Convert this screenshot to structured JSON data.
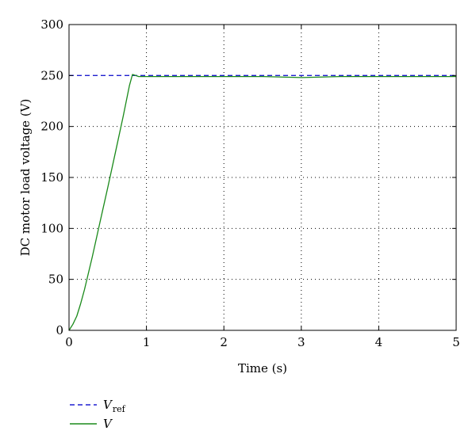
{
  "chart_data": {
    "type": "line",
    "title": "",
    "xlabel": "Time (s)",
    "ylabel": "DC motor load voltage (V)",
    "xlim": [
      0,
      5
    ],
    "ylim": [
      0,
      300
    ],
    "xticks": [
      0,
      1,
      2,
      3,
      4,
      5
    ],
    "yticks": [
      0,
      50,
      100,
      150,
      200,
      250,
      300
    ],
    "xtick_labels": [
      "0",
      "1",
      "2",
      "3",
      "4",
      "5"
    ],
    "ytick_labels": [
      "0",
      "50",
      "100",
      "150",
      "200",
      "250",
      "300"
    ],
    "grid": true,
    "legend_position": "bottom-left",
    "series": [
      {
        "name": "V",
        "name_subscript": "ref",
        "style": "dashed",
        "color": "#1f1fd0",
        "x": [
          0,
          5
        ],
        "y": [
          250,
          250
        ]
      },
      {
        "name": "V",
        "name_subscript": "",
        "style": "solid",
        "color": "#1a8a1a",
        "x": [
          0,
          0.05,
          0.1,
          0.15,
          0.2,
          0.3,
          0.4,
          0.5,
          0.6,
          0.7,
          0.78,
          0.82,
          0.86,
          0.9,
          1.0,
          1.2,
          1.5,
          2.0,
          2.5,
          3.0,
          3.5,
          4.0,
          4.5,
          5.0
        ],
        "y": [
          0,
          6,
          14,
          26,
          40,
          72,
          106,
          140,
          175,
          210,
          240,
          251,
          250,
          249,
          249,
          249,
          249,
          249,
          249,
          248,
          249,
          249,
          249,
          249
        ]
      }
    ]
  }
}
